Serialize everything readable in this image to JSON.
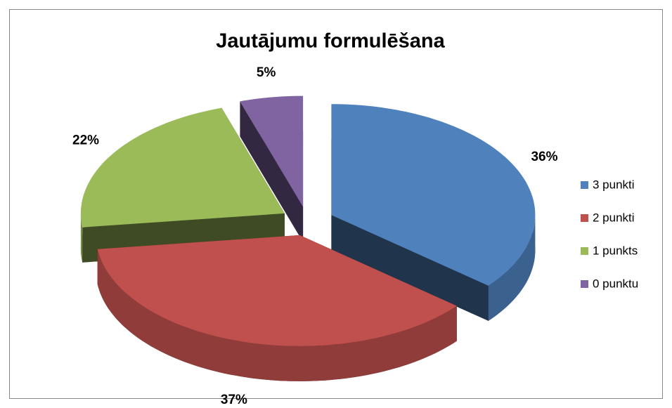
{
  "chart_data": {
    "type": "pie",
    "title": "Jautājumu formulēšana",
    "categories": [
      "3 punkti",
      "2 punkti",
      "1 punkts",
      "0 punktu"
    ],
    "values": [
      36,
      37,
      22,
      5
    ],
    "value_labels": [
      "36%",
      "37%",
      "22%",
      "5%"
    ],
    "colors": [
      "#4f81bd",
      "#c0504d",
      "#9bbb59",
      "#8064a2"
    ],
    "legend": "right"
  }
}
